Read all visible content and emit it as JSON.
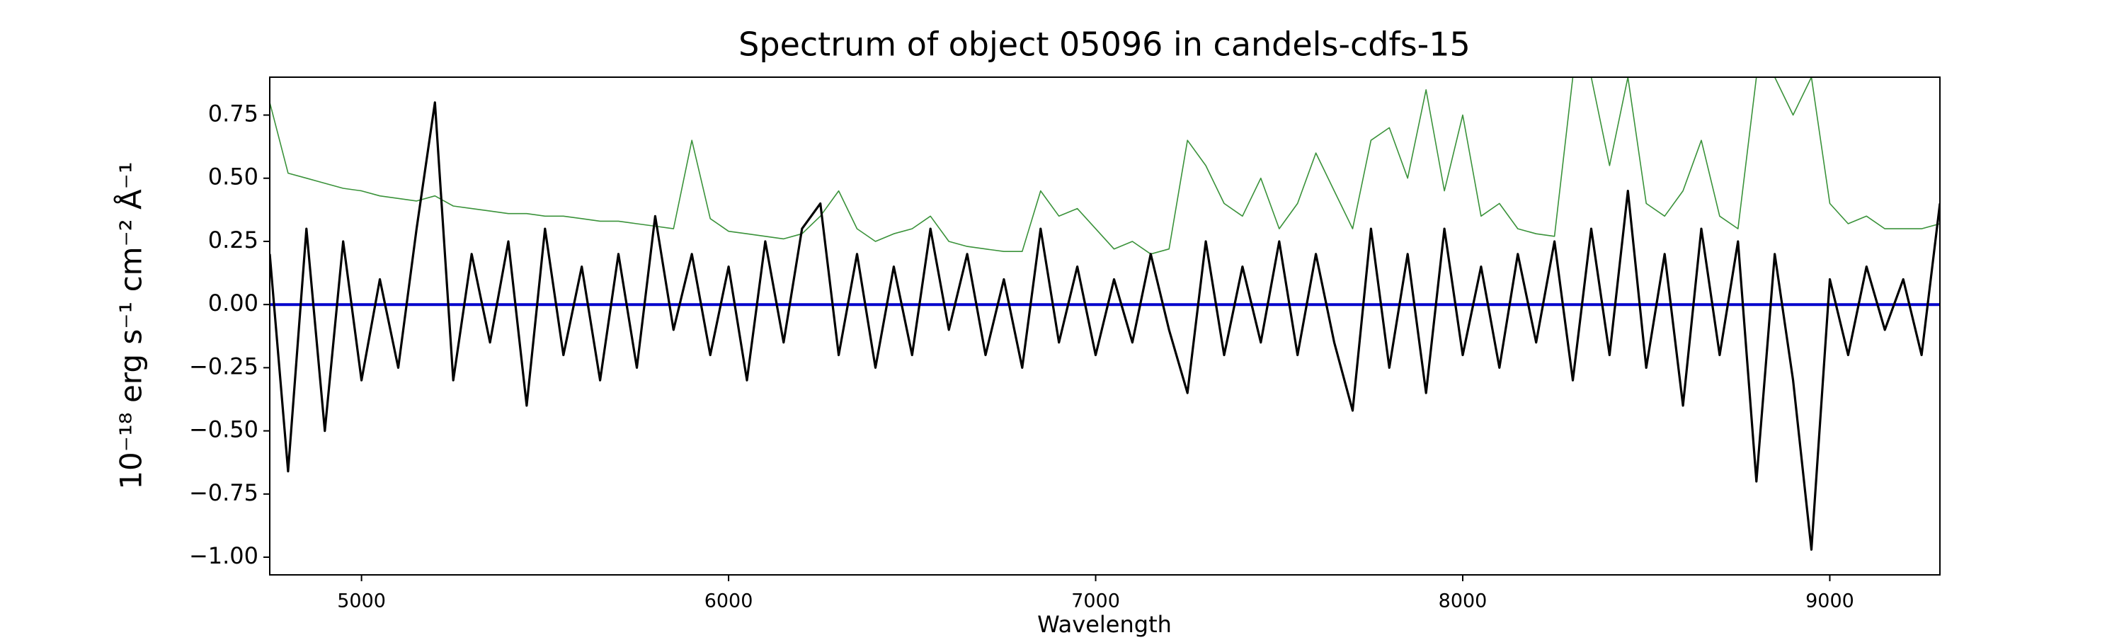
{
  "chart_data": {
    "type": "line",
    "title": "Spectrum of object 05096 in candels-cdfs-15",
    "xlabel": "Wavelength",
    "ylabel": "10⁻¹⁸ erg s⁻¹ cm⁻² Å⁻¹",
    "xlim": [
      4750,
      9300
    ],
    "ylim": [
      -1.07,
      0.9
    ],
    "xticks": [
      5000,
      6000,
      7000,
      8000,
      9000
    ],
    "yticks": [
      {
        "value": -1.0,
        "label": "−1.00"
      },
      {
        "value": -0.75,
        "label": "−0.75"
      },
      {
        "value": -0.5,
        "label": "−0.50"
      },
      {
        "value": -0.25,
        "label": "−0.25"
      },
      {
        "value": 0.0,
        "label": "0.00"
      },
      {
        "value": 0.25,
        "label": "0.25"
      },
      {
        "value": 0.5,
        "label": "0.50"
      },
      {
        "value": 0.75,
        "label": "0.75"
      }
    ],
    "x": [
      4750,
      4800,
      4850,
      4900,
      4950,
      5000,
      5050,
      5100,
      5150,
      5200,
      5250,
      5300,
      5350,
      5400,
      5450,
      5500,
      5550,
      5600,
      5650,
      5700,
      5750,
      5800,
      5850,
      5900,
      5950,
      6000,
      6050,
      6100,
      6150,
      6200,
      6250,
      6300,
      6350,
      6400,
      6450,
      6500,
      6550,
      6600,
      6650,
      6700,
      6750,
      6800,
      6850,
      6900,
      6950,
      7000,
      7050,
      7100,
      7150,
      7200,
      7250,
      7300,
      7350,
      7400,
      7450,
      7500,
      7550,
      7600,
      7650,
      7700,
      7750,
      7800,
      7850,
      7900,
      7950,
      8000,
      8050,
      8100,
      8150,
      8200,
      8250,
      8300,
      8350,
      8400,
      8450,
      8500,
      8550,
      8600,
      8650,
      8700,
      8750,
      8800,
      8850,
      8900,
      8950,
      9000,
      9050,
      9100,
      9150,
      9200,
      9250,
      9300
    ],
    "series": [
      {
        "color": "#3a923a",
        "width": 1.6,
        "values": [
          0.8,
          0.52,
          0.5,
          0.48,
          0.46,
          0.45,
          0.43,
          0.42,
          0.41,
          0.43,
          0.39,
          0.38,
          0.37,
          0.36,
          0.36,
          0.35,
          0.35,
          0.34,
          0.33,
          0.33,
          0.32,
          0.31,
          0.3,
          0.65,
          0.34,
          0.29,
          0.28,
          0.27,
          0.26,
          0.28,
          0.35,
          0.45,
          0.3,
          0.25,
          0.28,
          0.3,
          0.35,
          0.25,
          0.23,
          0.22,
          0.21,
          0.21,
          0.45,
          0.35,
          0.38,
          0.3,
          0.22,
          0.25,
          0.2,
          0.22,
          0.65,
          0.55,
          0.4,
          0.35,
          0.5,
          0.3,
          0.4,
          0.6,
          0.45,
          0.3,
          0.65,
          0.7,
          0.5,
          0.85,
          0.45,
          0.75,
          0.35,
          0.4,
          0.3,
          0.28,
          0.27,
          0.9,
          0.9,
          0.55,
          0.9,
          0.4,
          0.35,
          0.45,
          0.65,
          0.35,
          0.3,
          0.9,
          0.9,
          0.75,
          0.9,
          0.4,
          0.32,
          0.35,
          0.3,
          0.3,
          0.3,
          0.32
        ]
      },
      {
        "color": "#0000cc",
        "width": 4,
        "x": [
          4750,
          9300
        ],
        "values": [
          0,
          0
        ]
      },
      {
        "color": "#000000",
        "width": 3.2,
        "values": [
          0.2,
          -0.66,
          0.3,
          -0.5,
          0.25,
          -0.3,
          0.1,
          -0.25,
          0.3,
          0.8,
          -0.3,
          0.2,
          -0.15,
          0.25,
          -0.4,
          0.3,
          -0.2,
          0.15,
          -0.3,
          0.2,
          -0.25,
          0.35,
          -0.1,
          0.2,
          -0.2,
          0.15,
          -0.3,
          0.25,
          -0.15,
          0.3,
          0.4,
          -0.2,
          0.2,
          -0.25,
          0.15,
          -0.2,
          0.3,
          -0.1,
          0.2,
          -0.2,
          0.1,
          -0.25,
          0.3,
          -0.15,
          0.15,
          -0.2,
          0.1,
          -0.15,
          0.2,
          -0.1,
          -0.35,
          0.25,
          -0.2,
          0.15,
          -0.15,
          0.25,
          -0.2,
          0.2,
          -0.15,
          -0.42,
          0.3,
          -0.25,
          0.2,
          -0.35,
          0.3,
          -0.2,
          0.15,
          -0.25,
          0.2,
          -0.15,
          0.25,
          -0.3,
          0.3,
          -0.2,
          0.45,
          -0.25,
          0.2,
          -0.4,
          0.3,
          -0.2,
          0.25,
          -0.7,
          0.2,
          -0.3,
          -0.97,
          0.1,
          -0.2,
          0.15,
          -0.1,
          0.1,
          -0.2,
          0.4
        ]
      }
    ]
  }
}
